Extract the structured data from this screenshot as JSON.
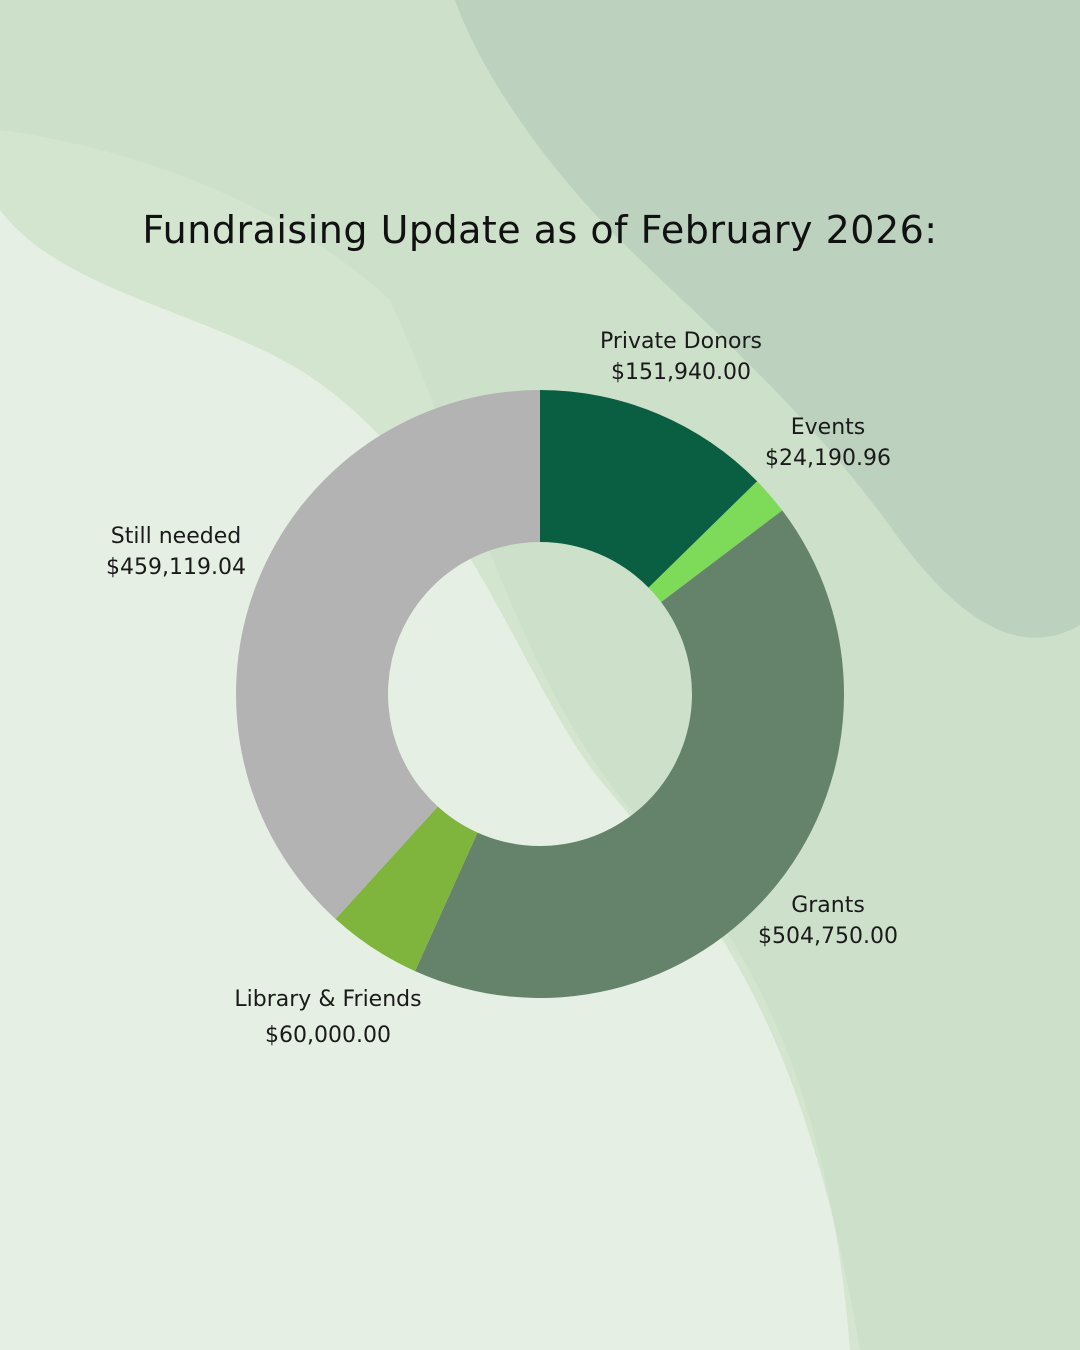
{
  "colors": {
    "private_donors": "#0a5e42",
    "events": "#7edb5a",
    "grants": "#65826b",
    "library_friends": "#7fb43d",
    "still_needed": "#b3b3b3"
  },
  "chart_data": {
    "type": "pie",
    "donut": true,
    "title": "Fundraising Update as of February 2026:",
    "slices": [
      {
        "name": "Private Donors",
        "value": 151940.0,
        "label": "$151,940.00",
        "color": "#0a5e42"
      },
      {
        "name": "Events",
        "value": 24190.96,
        "label": "$24,190.96",
        "color": "#7edb5a"
      },
      {
        "name": "Grants",
        "value": 504750.0,
        "label": "$504,750.00",
        "color": "#65826b"
      },
      {
        "name": "Library & Friends",
        "value": 60000.0,
        "label": "$60,000.00",
        "color": "#7fb43d"
      },
      {
        "name": "Still needed",
        "value": 459119.04,
        "label": "$459,119.04",
        "color": "#b3b3b3"
      }
    ]
  }
}
